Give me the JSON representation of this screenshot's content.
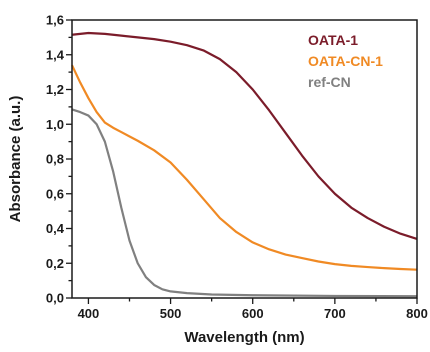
{
  "chart_data": {
    "type": "line",
    "title": "",
    "xlabel": "Wavelength (nm)",
    "ylabel": "Absorbance (a.u.)",
    "xlim": [
      380,
      800
    ],
    "ylim": [
      0.0,
      1.6
    ],
    "x_ticks": [
      "400",
      "500",
      "600",
      "700",
      "800"
    ],
    "y_ticks": [
      "0,0",
      "0,2",
      "0,4",
      "0,6",
      "0,8",
      "1,0",
      "1,2",
      "1,4",
      "1,6"
    ],
    "grid": false,
    "legend_position": "top-right",
    "series": [
      {
        "name": "OATA-1",
        "color": "#7b1c2a",
        "points": [
          [
            380,
            1.515
          ],
          [
            400,
            1.525
          ],
          [
            420,
            1.52
          ],
          [
            440,
            1.51
          ],
          [
            460,
            1.5
          ],
          [
            480,
            1.49
          ],
          [
            500,
            1.475
          ],
          [
            520,
            1.455
          ],
          [
            540,
            1.425
          ],
          [
            560,
            1.375
          ],
          [
            580,
            1.3
          ],
          [
            600,
            1.2
          ],
          [
            620,
            1.08
          ],
          [
            640,
            0.95
          ],
          [
            660,
            0.82
          ],
          [
            680,
            0.7
          ],
          [
            700,
            0.6
          ],
          [
            720,
            0.52
          ],
          [
            740,
            0.46
          ],
          [
            760,
            0.41
          ],
          [
            780,
            0.37
          ],
          [
            800,
            0.34
          ]
        ]
      },
      {
        "name": "OATA-CN-1",
        "color": "#f08a24",
        "points": [
          [
            380,
            1.34
          ],
          [
            390,
            1.24
          ],
          [
            400,
            1.15
          ],
          [
            410,
            1.07
          ],
          [
            420,
            1.01
          ],
          [
            430,
            0.98
          ],
          [
            440,
            0.955
          ],
          [
            460,
            0.905
          ],
          [
            480,
            0.85
          ],
          [
            500,
            0.78
          ],
          [
            520,
            0.68
          ],
          [
            540,
            0.57
          ],
          [
            560,
            0.46
          ],
          [
            580,
            0.38
          ],
          [
            600,
            0.32
          ],
          [
            620,
            0.28
          ],
          [
            640,
            0.25
          ],
          [
            660,
            0.23
          ],
          [
            680,
            0.21
          ],
          [
            700,
            0.195
          ],
          [
            720,
            0.185
          ],
          [
            740,
            0.178
          ],
          [
            760,
            0.172
          ],
          [
            780,
            0.167
          ],
          [
            800,
            0.163
          ]
        ]
      },
      {
        "name": "ref-CN",
        "color": "#808080",
        "points": [
          [
            380,
            1.085
          ],
          [
            390,
            1.07
          ],
          [
            400,
            1.05
          ],
          [
            410,
            1.0
          ],
          [
            420,
            0.9
          ],
          [
            430,
            0.73
          ],
          [
            440,
            0.52
          ],
          [
            450,
            0.33
          ],
          [
            460,
            0.2
          ],
          [
            470,
            0.12
          ],
          [
            480,
            0.075
          ],
          [
            490,
            0.05
          ],
          [
            500,
            0.038
          ],
          [
            520,
            0.028
          ],
          [
            550,
            0.02
          ],
          [
            600,
            0.016
          ],
          [
            700,
            0.012
          ],
          [
            800,
            0.01
          ]
        ]
      }
    ]
  }
}
